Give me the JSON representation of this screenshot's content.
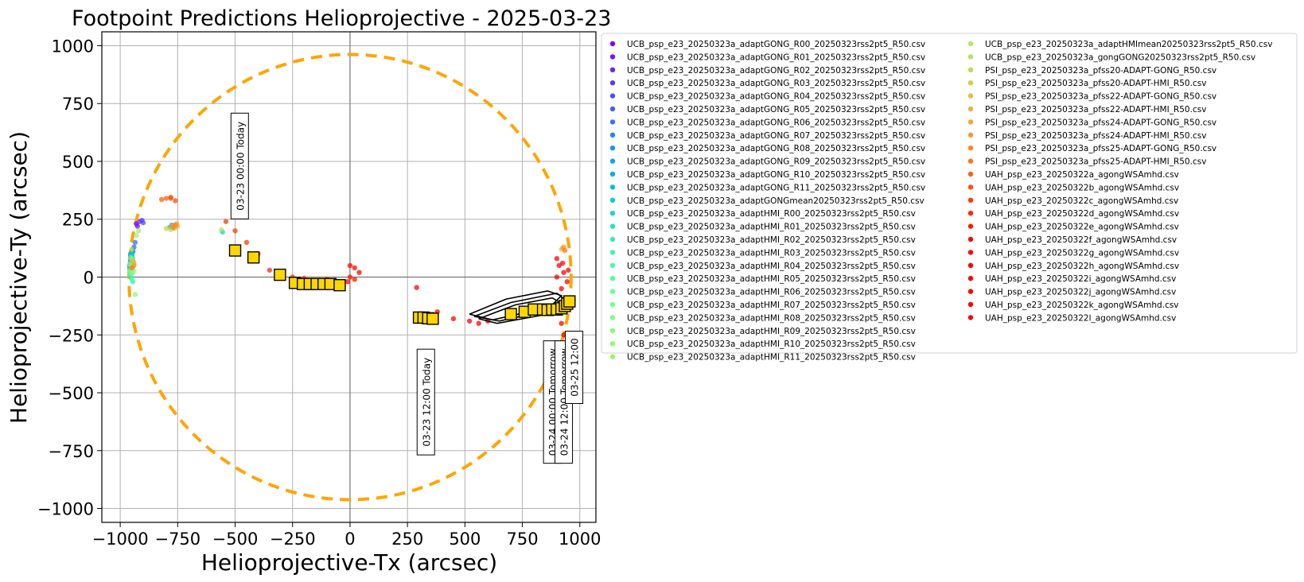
{
  "chart_data": {
    "type": "scatter",
    "title": "Footpoint Predictions Helioprojective - 2025-03-23",
    "xlabel": "Helioprojective-Tx (arcsec)",
    "ylabel": "Helioprojective-Ty (arcsec)",
    "xlim": [
      -1080,
      1070
    ],
    "ylim": [
      -1060,
      1060
    ],
    "xticks": [
      -1000,
      -750,
      -500,
      -250,
      0,
      250,
      500,
      750,
      1000
    ],
    "yticks": [
      -1000,
      -750,
      -500,
      -250,
      0,
      250,
      500,
      750,
      1000
    ],
    "xtick_labels": [
      "−1000",
      "−750",
      "−500",
      "−250",
      "0",
      "250",
      "500",
      "750",
      "1000"
    ],
    "ytick_labels": [
      "−1000",
      "−750",
      "−500",
      "−250",
      "0",
      "250",
      "500",
      "750",
      "1000"
    ],
    "grid": true,
    "legend_placement": "outside-right",
    "solar_limb": {
      "radius": 962,
      "color": "#ffa500"
    },
    "annotations": [
      {
        "text": "03-23 00:00 Today",
        "x": -480,
        "y": 480
      },
      {
        "text": "03-23 12:00 Today",
        "x": 330,
        "y": -540
      },
      {
        "text": "03-24 00:00 Tomorrow",
        "x": 880,
        "y": -540
      },
      {
        "text": "03-24 12:00 Tomorrow",
        "x": 930,
        "y": -540
      },
      {
        "text": "03-25 12:00",
        "x": 975,
        "y": -390
      }
    ],
    "markers": [
      [
        -500,
        115
      ],
      [
        -420,
        85
      ],
      [
        -305,
        10
      ],
      [
        -240,
        -25
      ],
      [
        -205,
        -30
      ],
      [
        -175,
        -30
      ],
      [
        -145,
        -30
      ],
      [
        -115,
        -30
      ],
      [
        -85,
        -30
      ],
      [
        -45,
        -35
      ],
      [
        300,
        -175
      ],
      [
        320,
        -175
      ],
      [
        340,
        -178
      ],
      [
        360,
        -180
      ],
      [
        700,
        -160
      ],
      [
        760,
        -150
      ],
      [
        800,
        -140
      ],
      [
        840,
        -140
      ],
      [
        860,
        -142
      ],
      [
        880,
        -140
      ],
      [
        900,
        -140
      ],
      [
        920,
        -135
      ],
      [
        935,
        -125
      ],
      [
        945,
        -115
      ],
      [
        955,
        -105
      ]
    ],
    "series": [
      {
        "name": "UCB_psp_e23_20250323a_adaptGONG_R00_20250323rss2pt5_R50.csv",
        "color": "#7f00ff",
        "points": [
          [
            -930,
            230
          ],
          [
            -955,
            90
          ]
        ]
      },
      {
        "name": "UCB_psp_e23_20250323a_adaptGONG_R01_20250323rss2pt5_R50.csv",
        "color": "#7314ff",
        "points": [
          [
            -925,
            220
          ],
          [
            -950,
            100
          ]
        ]
      },
      {
        "name": "UCB_psp_e23_20250323a_adaptGONG_R02_20250323rss2pt5_R50.csv",
        "color": "#6727fe",
        "points": [
          [
            -915,
            240
          ],
          [
            -945,
            110
          ]
        ]
      },
      {
        "name": "UCB_psp_e23_20250323a_adaptGONG_R03_20250323rss2pt5_R50.csv",
        "color": "#5a3bfc",
        "points": [
          [
            -905,
            245
          ],
          [
            -950,
            80
          ]
        ]
      },
      {
        "name": "UCB_psp_e23_20250323a_adaptGONG_R04_20250323rss2pt5_R50.csv",
        "color": "#4e4ef9",
        "points": [
          [
            -900,
            235
          ],
          [
            -955,
            60
          ]
        ]
      },
      {
        "name": "UCB_psp_e23_20250323a_adaptGONG_R05_20250323rss2pt5_R50.csv",
        "color": "#4261f6",
        "points": [
          [
            -940,
            130
          ],
          [
            -958,
            40
          ]
        ]
      },
      {
        "name": "UCB_psp_e23_20250323a_adaptGONG_R06_20250323rss2pt5_R50.csv",
        "color": "#3673f2",
        "points": [
          [
            -935,
            150
          ],
          [
            -950,
            95
          ]
        ]
      },
      {
        "name": "UCB_psp_e23_20250323a_adaptGONG_R07_20250323rss2pt5_R50.csv",
        "color": "#2a84ed",
        "points": [
          [
            -945,
            120
          ],
          [
            -955,
            70
          ]
        ]
      },
      {
        "name": "UCB_psp_e23_20250323a_adaptGONG_R08_20250323rss2pt5_R50.csv",
        "color": "#1e94e8",
        "points": [
          [
            -950,
            105
          ],
          [
            -960,
            50
          ]
        ]
      },
      {
        "name": "UCB_psp_e23_20250323a_adaptGONG_R09_20250323rss2pt5_R50.csv",
        "color": "#12a4e2",
        "points": [
          [
            -765,
            220
          ],
          [
            -955,
            100
          ]
        ]
      },
      {
        "name": "UCB_psp_e23_20250323a_adaptGONG_R10_20250323rss2pt5_R50.csv",
        "color": "#06b2dc",
        "points": [
          [
            -775,
            225
          ],
          [
            -950,
            90
          ]
        ]
      },
      {
        "name": "UCB_psp_e23_20250323a_adaptGONG_R11_20250323rss2pt5_R50.csv",
        "color": "#05bfd5",
        "points": [
          [
            -785,
            215
          ],
          [
            -945,
            110
          ]
        ]
      },
      {
        "name": "UCB_psp_e23_20250323a_adaptGONGmean20250323rss2pt5_R50.csv",
        "color": "#11ccce",
        "points": [
          [
            -555,
            195
          ],
          [
            -950,
            100
          ]
        ]
      },
      {
        "name": "UCB_psp_e23_20250323a_adaptHMI_R00_20250323rss2pt5_R50.csv",
        "color": "#1dd7c7",
        "points": [
          [
            -955,
            40
          ],
          [
            -950,
            20
          ]
        ]
      },
      {
        "name": "UCB_psp_e23_20250323a_adaptHMI_R01_20250323rss2pt5_R50.csv",
        "color": "#29e1bf",
        "points": [
          [
            -958,
            30
          ],
          [
            -955,
            0
          ]
        ]
      },
      {
        "name": "UCB_psp_e23_20250323a_adaptHMI_R02_20250323rss2pt5_R50.csv",
        "color": "#35ebb7",
        "points": [
          [
            -950,
            60
          ],
          [
            -945,
            -20
          ]
        ]
      },
      {
        "name": "UCB_psp_e23_20250323a_adaptHMI_R03_20250323rss2pt5_R50.csv",
        "color": "#41f2af",
        "points": [
          [
            -945,
            80
          ],
          [
            -955,
            10
          ]
        ]
      },
      {
        "name": "UCB_psp_e23_20250323a_adaptHMI_R04_20250323rss2pt5_R50.csv",
        "color": "#4df8a7",
        "points": [
          [
            -940,
            50
          ],
          [
            -950,
            -10
          ]
        ]
      },
      {
        "name": "UCB_psp_e23_20250323a_adaptHMI_R05_20250323rss2pt5_R50.csv",
        "color": "#59fb9f",
        "points": [
          [
            -960,
            20
          ],
          [
            -945,
            70
          ]
        ]
      },
      {
        "name": "UCB_psp_e23_20250323a_adaptHMI_R06_20250323rss2pt5_R50.csv",
        "color": "#65fe97",
        "points": [
          [
            -950,
            45
          ],
          [
            -940,
            65
          ]
        ]
      },
      {
        "name": "UCB_psp_e23_20250323a_adaptHMI_R07_20250323rss2pt5_R50.csv",
        "color": "#71fe8f",
        "points": [
          [
            -945,
            35
          ],
          [
            -955,
            85
          ]
        ]
      },
      {
        "name": "UCB_psp_e23_20250323a_adaptHMI_R08_20250323rss2pt5_R50.csv",
        "color": "#7dfe87",
        "points": [
          [
            -960,
            55
          ],
          [
            -948,
            15
          ]
        ]
      },
      {
        "name": "UCB_psp_e23_20250323a_adaptHMI_R09_20250323rss2pt5_R50.csv",
        "color": "#89fb7f",
        "points": [
          [
            -935,
            -75
          ],
          [
            -955,
            30
          ]
        ]
      },
      {
        "name": "UCB_psp_e23_20250323a_adaptHMI_R10_20250323rss2pt5_R50.csv",
        "color": "#95f877",
        "points": [
          [
            -940,
            25
          ],
          [
            -950,
            75
          ]
        ]
      },
      {
        "name": "UCB_psp_e23_20250323a_adaptHMI_R11_20250323rss2pt5_R50.csv",
        "color": "#a1f26f",
        "points": [
          [
            -945,
            55
          ],
          [
            -930,
            180
          ]
        ]
      },
      {
        "name": "UCB_psp_e23_20250323a_adaptHMImean20250323rss2pt5_R50.csv",
        "color": "#adeb67",
        "points": [
          [
            -950,
            45
          ],
          [
            -920,
            200
          ]
        ]
      },
      {
        "name": "UCB_psp_e23_20250323a_gongGONG20250323rss2pt5_R50.csv",
        "color": "#b9e15e",
        "points": [
          [
            -560,
            205
          ],
          [
            -950,
            120
          ]
        ]
      },
      {
        "name": "PSI_psp_e23_20250323a_pfss20-ADAPT-GONG_R50.csv",
        "color": "#c5d756",
        "points": [
          [
            -760,
            215
          ],
          [
            -780,
            205
          ],
          [
            -800,
            210
          ]
        ]
      },
      {
        "name": "PSI_psp_e23_20250323a_pfss20-ADAPT-HMI_R50.csv",
        "color": "#d1cc4e",
        "points": [
          [
            -940,
            60
          ],
          [
            920,
            120
          ]
        ]
      },
      {
        "name": "PSI_psp_e23_20250323a_pfss22-ADAPT-GONG_R50.csv",
        "color": "#ddbf45",
        "points": [
          [
            -750,
            220
          ],
          [
            -765,
            210
          ]
        ]
      },
      {
        "name": "PSI_psp_e23_20250323a_pfss22-ADAPT-HMI_R50.csv",
        "color": "#e9b23d",
        "points": [
          [
            -945,
            70
          ],
          [
            925,
            125
          ]
        ]
      },
      {
        "name": "PSI_psp_e23_20250323a_pfss24-ADAPT-GONG_R50.csv",
        "color": "#f5a434",
        "points": [
          [
            -755,
            230
          ],
          [
            -775,
            220
          ]
        ]
      },
      {
        "name": "PSI_psp_e23_20250323a_pfss24-ADAPT-HMI_R50.csv",
        "color": "#ff942c",
        "points": [
          [
            -940,
            50
          ],
          [
            930,
            130
          ]
        ]
      },
      {
        "name": "PSI_psp_e23_20250323a_pfss25-ADAPT-GONG_R50.csv",
        "color": "#ff8423",
        "points": [
          [
            -760,
            225
          ],
          [
            -770,
            215
          ]
        ]
      },
      {
        "name": "PSI_psp_e23_20250323a_pfss25-ADAPT-HMI_R50.csv",
        "color": "#ff731a",
        "points": [
          [
            -950,
            40
          ],
          [
            935,
            115
          ]
        ]
      },
      {
        "name": "UAH_psp_e23_20250322a_agongWSAmhd.csv",
        "color": "#ff6212",
        "points": [
          [
            -820,
            335
          ],
          [
            -800,
            340
          ],
          [
            -780,
            340
          ]
        ]
      },
      {
        "name": "UAH_psp_e23_20250322b_agongWSAmhd.csv",
        "color": "#ff4f09",
        "points": [
          [
            -760,
            330
          ],
          [
            -780,
            345
          ]
        ]
      },
      {
        "name": "UAH_psp_e23_20250322c_agongWSAmhd.csv",
        "color": "#ff3c00",
        "points": [
          [
            -540,
            240
          ],
          [
            -500,
            200
          ],
          [
            -450,
            150
          ],
          [
            -400,
            100
          ]
        ]
      },
      {
        "name": "UAH_psp_e23_20250322d_agongWSAmhd.csv",
        "color": "#ff2a00",
        "points": [
          [
            -350,
            30
          ],
          [
            -300,
            20
          ],
          [
            -250,
            0
          ],
          [
            -200,
            -5
          ]
        ]
      },
      {
        "name": "UAH_psp_e23_20250322e_agongWSAmhd.csv",
        "color": "#ff1800",
        "points": [
          [
            -100,
            -10
          ],
          [
            -50,
            -20
          ],
          [
            0,
            0
          ],
          [
            20,
            -10
          ]
        ]
      },
      {
        "name": "UAH_psp_e23_20250322f_agongWSAmhd.csv",
        "color": "#ff0600",
        "points": [
          [
            0,
            50
          ],
          [
            20,
            40
          ],
          [
            40,
            20
          ],
          [
            -10,
            -20
          ]
        ]
      },
      {
        "name": "UAH_psp_e23_20250322g_agongWSAmhd.csv",
        "color": "#ff0000",
        "points": [
          [
            290,
            -45
          ],
          [
            380,
            -150
          ],
          [
            450,
            -180
          ],
          [
            520,
            -190
          ]
        ]
      },
      {
        "name": "UAH_psp_e23_20250322h_agongWSAmhd.csv",
        "color": "#ff0000",
        "points": [
          [
            560,
            -200
          ],
          [
            600,
            -190
          ],
          [
            700,
            -170
          ]
        ]
      },
      {
        "name": "UAH_psp_e23_20250322i_agongWSAmhd.csv",
        "color": "#ff0000",
        "points": [
          [
            900,
            0
          ],
          [
            920,
            -50
          ],
          [
            940,
            -100
          ]
        ]
      },
      {
        "name": "UAH_psp_e23_20250322j_agongWSAmhd.csv",
        "color": "#ff0000",
        "points": [
          [
            910,
            50
          ],
          [
            930,
            20
          ],
          [
            945,
            -20
          ]
        ]
      },
      {
        "name": "UAH_psp_e23_20250322k_agongWSAmhd.csv",
        "color": "#ff0000",
        "points": [
          [
            920,
            -200
          ],
          [
            930,
            -250
          ],
          [
            935,
            -300
          ]
        ]
      },
      {
        "name": "UAH_psp_e23_20250322l_agongWSAmhd.csv",
        "color": "#ff0000",
        "points": [
          [
            900,
            80
          ],
          [
            925,
            60
          ],
          [
            950,
            30
          ]
        ]
      }
    ]
  }
}
